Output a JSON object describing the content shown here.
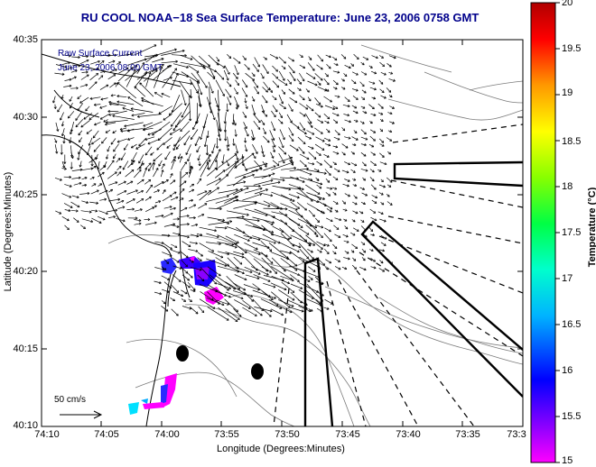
{
  "title": "RU COOL  NOAA−18  Sea Surface Temperature:  June 23, 2006 0758 GMT",
  "legend": {
    "line1": "Raw Surface Current",
    "line2": "June 23, 2006 08:00 GMT"
  },
  "scale_label": "50 cm/s",
  "x_axis": {
    "label": "Longitude (Degrees:Minutes)",
    "ticks": [
      "74:10",
      "74:05",
      "74:00",
      "73:55",
      "73:50",
      "73:45",
      "73:40",
      "73:35",
      "73:3"
    ]
  },
  "y_axis": {
    "label": "Latitude (Degrees:Minutes)",
    "ticks": [
      "40:35",
      "40:30",
      "40:25",
      "40:20",
      "40:15",
      "40:10"
    ]
  },
  "colorbar": {
    "label": "Temperature (°C)",
    "ticks": [
      "20",
      "19.5",
      "19",
      "18.5",
      "18",
      "17.5",
      "17",
      "16.5",
      "16",
      "15.5",
      "15"
    ],
    "range": [
      15,
      20
    ],
    "colors": [
      "#ff00ff",
      "#7b00ff",
      "#0000ff",
      "#00c8ff",
      "#00ff88",
      "#88ff00",
      "#ffff00",
      "#ff8800",
      "#ff0000",
      "#b00000"
    ]
  }
}
